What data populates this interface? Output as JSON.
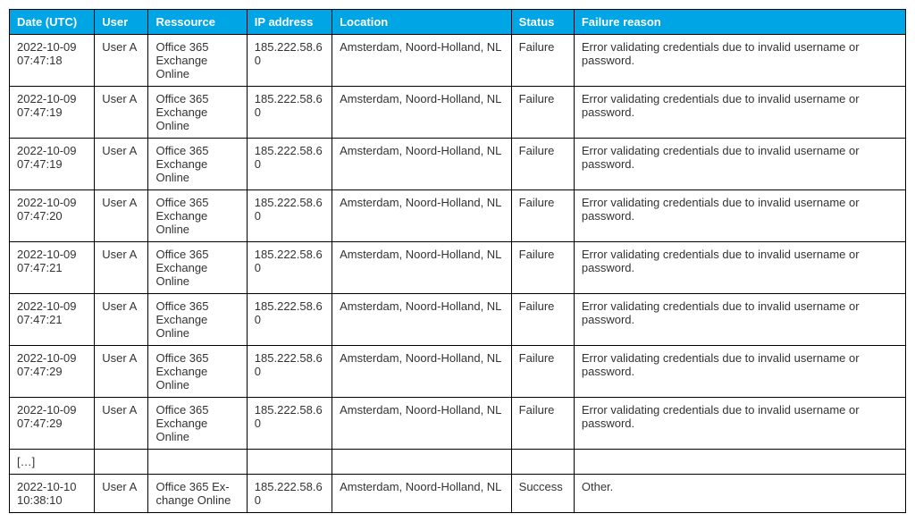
{
  "table": {
    "header_bg": "#00a5e5",
    "header_fg": "#ffffff",
    "border_color": "#000000",
    "columns": [
      "Date (UTC)",
      "User",
      "Ressource",
      "IP address",
      "Location",
      "Status",
      "Failure reason"
    ],
    "rows": [
      {
        "date": "2022-10-09 07:47:18",
        "user": "User A",
        "resource": "Office 365 Exchange Online",
        "ip": "185.222.58.60",
        "location": "Amsterdam, Noord-Holland, NL",
        "status": "Failure",
        "reason": "Error validating credentials due to invalid username or password."
      },
      {
        "date": "2022-10-09 07:47:19",
        "user": "User A",
        "resource": "Office 365 Exchange Online",
        "ip": "185.222.58.60",
        "location": "Amsterdam, Noord-Holland, NL",
        "status": "Failure",
        "reason": "Error validating credentials due to invalid username or password."
      },
      {
        "date": "2022-10-09 07:47:19",
        "user": "User A",
        "resource": "Office 365 Exchange Online",
        "ip": "185.222.58.60",
        "location": "Amsterdam, Noord-Holland, NL",
        "status": "Failure",
        "reason": "Error validating credentials due to invalid username or password."
      },
      {
        "date": "2022-10-09 07:47:20",
        "user": "User A",
        "resource": "Office 365 Exchange Online",
        "ip": "185.222.58.60",
        "location": "Amsterdam, Noord-Holland, NL",
        "status": "Failure",
        "reason": "Error validating credentials due to invalid username or password."
      },
      {
        "date": "2022-10-09 07:47:21",
        "user": "User A",
        "resource": "Office 365 Exchange Online",
        "ip": "185.222.58.60",
        "location": "Amsterdam, Noord-Holland, NL",
        "status": "Failure",
        "reason": "Error validating credentials due to invalid username or password."
      },
      {
        "date": "2022-10-09 07:47:21",
        "user": "User A",
        "resource": "Office 365 Exchange Online",
        "ip": "185.222.58.60",
        "location": "Amsterdam, Noord-Holland, NL",
        "status": "Failure",
        "reason": "Error validating credentials due to invalid username or password."
      },
      {
        "date": "2022-10-09 07:47:29",
        "user": "User A",
        "resource": "Office 365 Exchange Online",
        "ip": "185.222.58.60",
        "location": "Amsterdam, Noord-Holland, NL",
        "status": "Failure",
        "reason": "Error validating credentials due to invalid username or password."
      },
      {
        "date": "2022-10-09 07:47:29",
        "user": "User A",
        "resource": "Office 365 Exchange Online",
        "ip": "185.222.58.60",
        "location": "Amsterdam, Noord-Holland, NL",
        "status": "Failure",
        "reason": "Error validating credentials due to invalid username or password."
      },
      {
        "date": "[…]",
        "user": "",
        "resource": "",
        "ip": "",
        "location": "",
        "status": "",
        "reason": ""
      },
      {
        "date": "2022-10-10 10:38:10",
        "user": "User A",
        "resource": "Office 365 Ex-change Online",
        "ip": "185.222.58.60",
        "location": "Amsterdam, Noord-Holland, NL",
        "status": "Success",
        "reason": "Other."
      }
    ]
  }
}
